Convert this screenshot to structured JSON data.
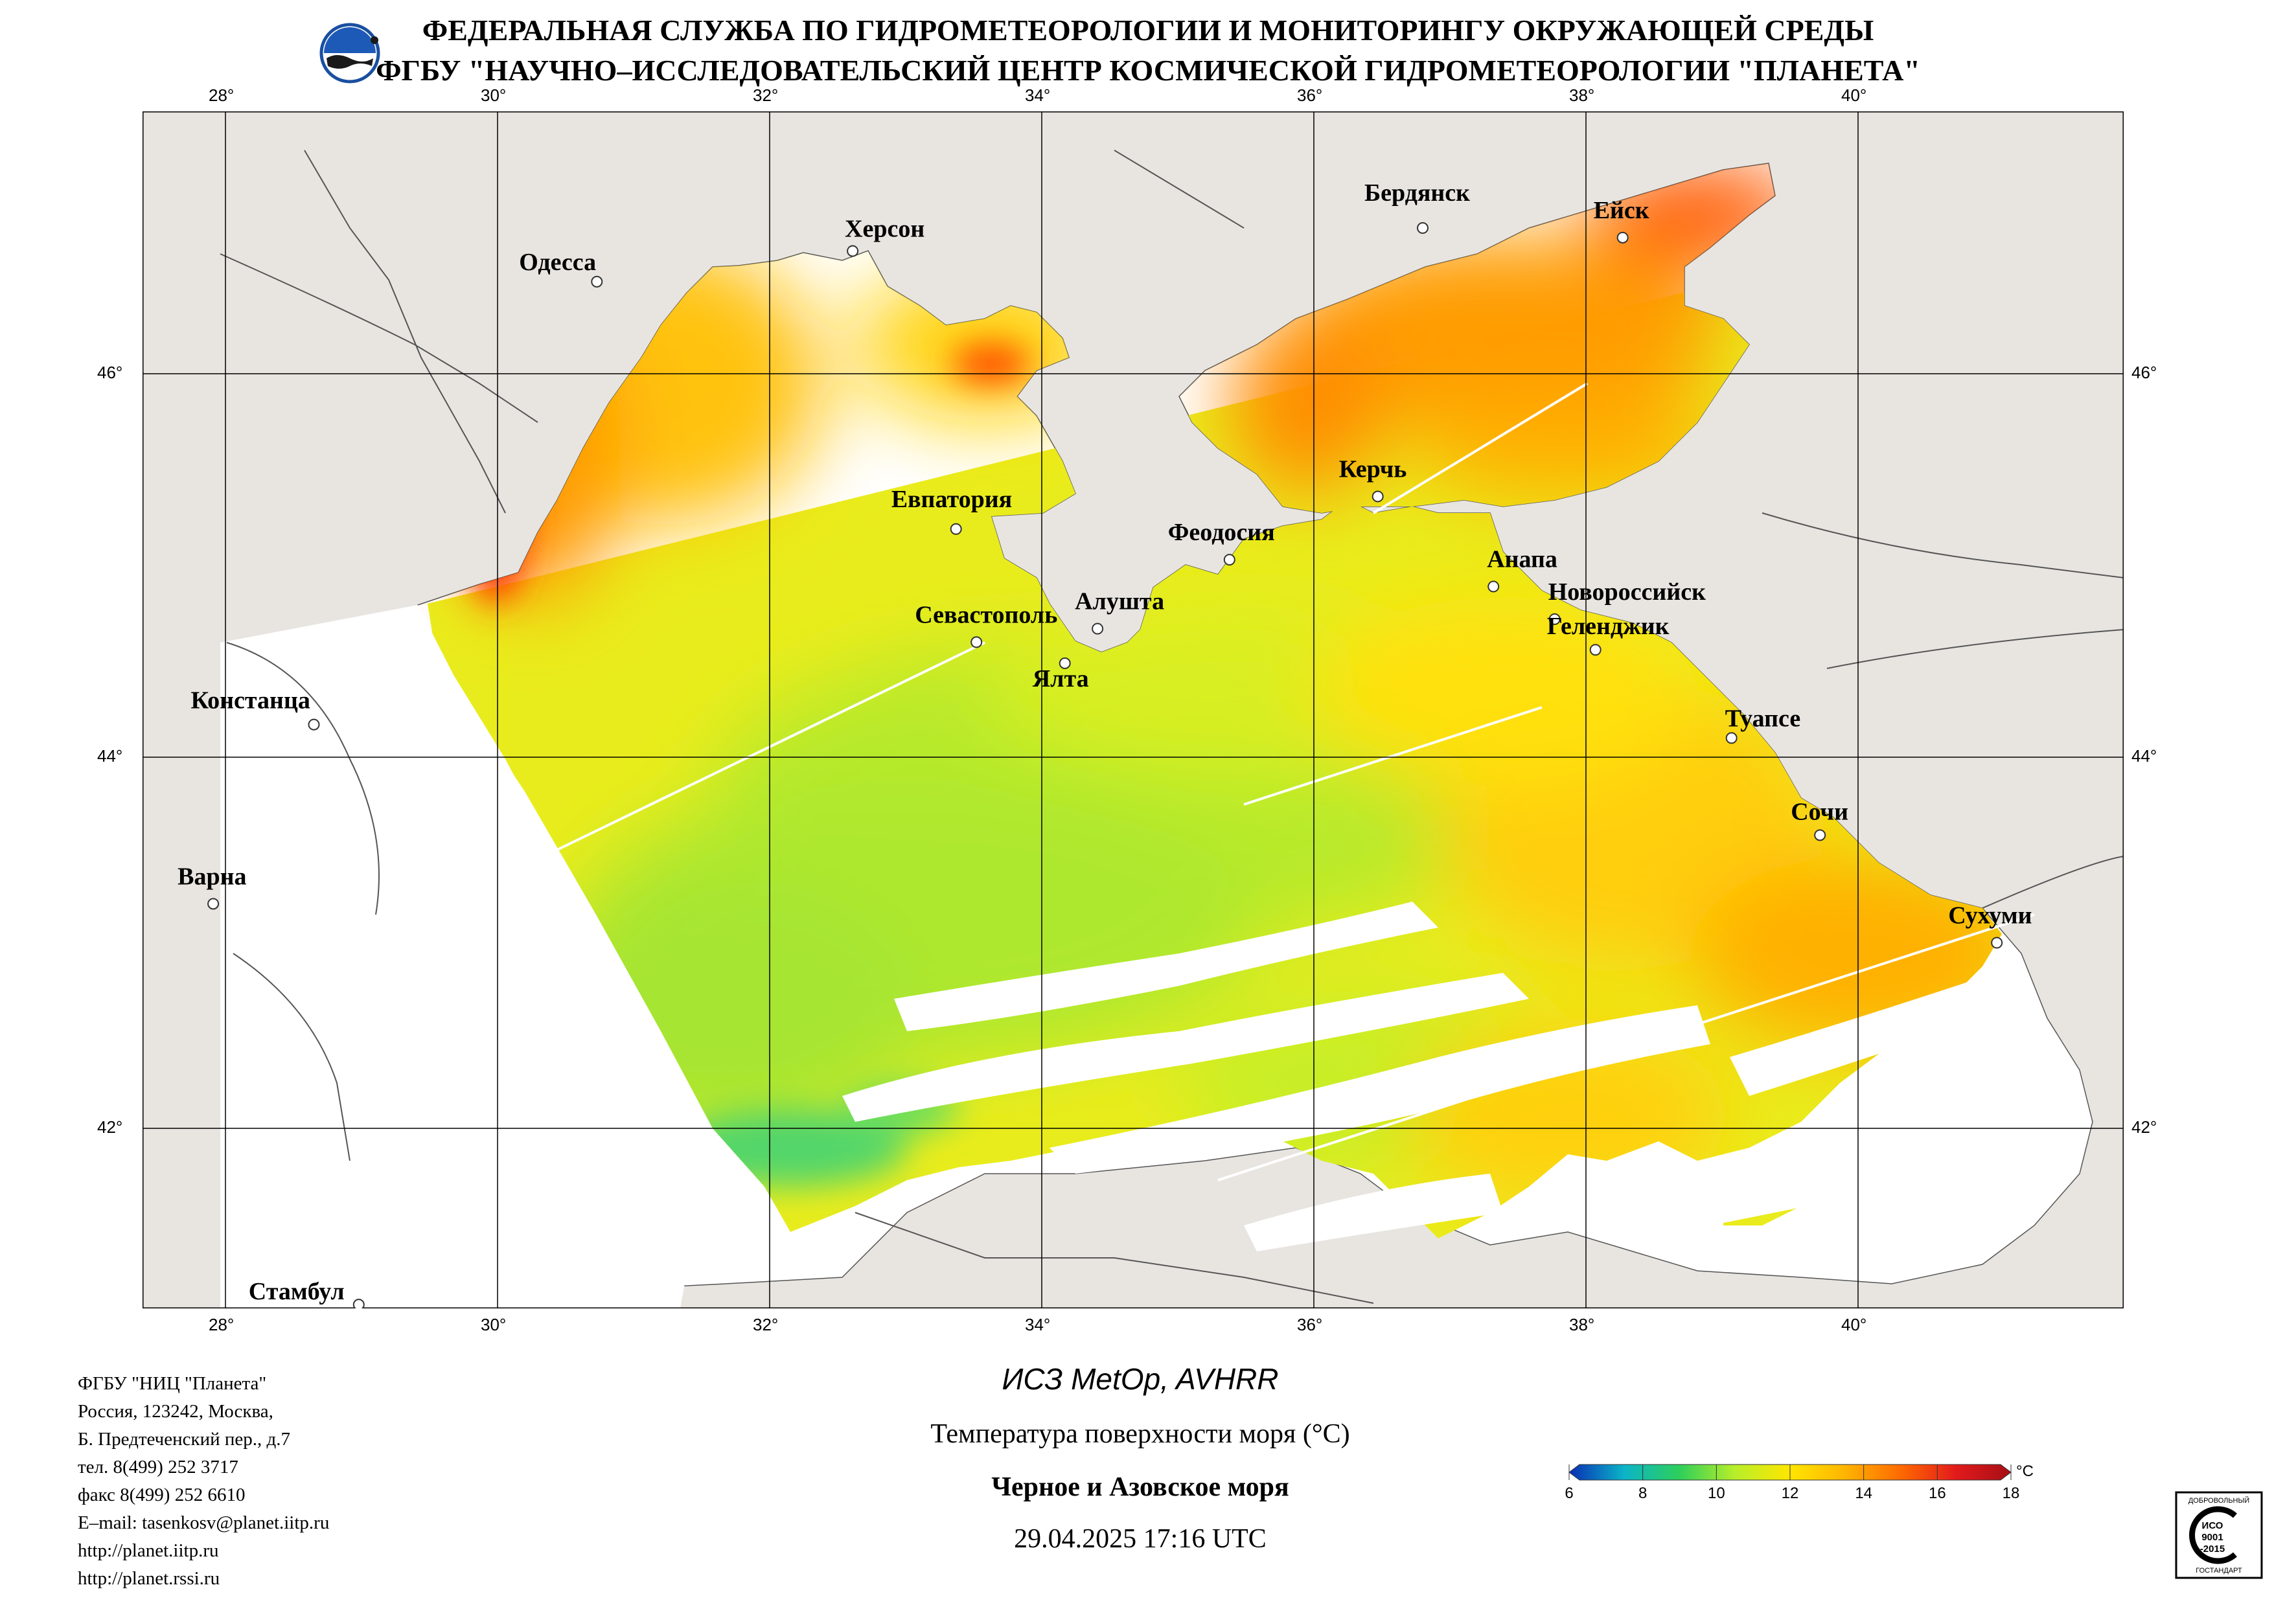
{
  "header": {
    "line1": "ФЕДЕРАЛЬНАЯ СЛУЖБА ПО ГИДРОМЕТЕОРОЛОГИИ И МОНИТОРИНГУ ОКРУЖАЮЩЕЙ СРЕДЫ",
    "line2": "ФГБУ \"НАУЧНО–ИССЛЕДОВАТЕЛЬСКИЙ ЦЕНТР КОСМИЧЕСКОЙ ГИДРОМЕТЕОРОЛОГИИ \"ПЛАНЕТА\"",
    "logo_icon": "planeta-logo-icon"
  },
  "map": {
    "lon_labels": [
      "28°",
      "30°",
      "32°",
      "34°",
      "36°",
      "38°",
      "40°"
    ],
    "lat_labels": [
      "46°",
      "44°",
      "42°"
    ],
    "colors": {
      "land": "#e8e5e1",
      "no_data": "#ffffff",
      "grid": "#000000"
    },
    "cities": [
      {
        "name": "Одесса",
        "lon": 30.73,
        "lat": 46.48
      },
      {
        "name": "Херсон",
        "lon": 32.61,
        "lat": 46.64
      },
      {
        "name": "Бердянск",
        "lon": 36.8,
        "lat": 46.76
      },
      {
        "name": "Ейск",
        "lon": 38.27,
        "lat": 46.71
      },
      {
        "name": "Евпатория",
        "lon": 33.37,
        "lat": 45.19
      },
      {
        "name": "Керчь",
        "lon": 36.47,
        "lat": 45.36
      },
      {
        "name": "Феодосия",
        "lon": 35.38,
        "lat": 45.03
      },
      {
        "name": "Анапа",
        "lon": 37.32,
        "lat": 44.89
      },
      {
        "name": "Новороссийск",
        "lon": 37.77,
        "lat": 44.72
      },
      {
        "name": "Геленджик",
        "lon": 38.07,
        "lat": 44.56
      },
      {
        "name": "Севастополь",
        "lon": 33.52,
        "lat": 44.6
      },
      {
        "name": "Алушта",
        "lon": 34.41,
        "lat": 44.67
      },
      {
        "name": "Ялта",
        "lon": 34.17,
        "lat": 44.49
      },
      {
        "name": "Констанца",
        "lon": 28.65,
        "lat": 44.17
      },
      {
        "name": "Туапсе",
        "lon": 39.07,
        "lat": 44.1
      },
      {
        "name": "Сочи",
        "lon": 39.72,
        "lat": 43.58
      },
      {
        "name": "Варна",
        "lon": 27.91,
        "lat": 43.21
      },
      {
        "name": "Сухуми",
        "lon": 41.02,
        "lat": 43.0
      },
      {
        "name": "Стамбул",
        "lon": 28.98,
        "lat": 41.05
      }
    ]
  },
  "org": {
    "lines": [
      "ФГБУ \"НИЦ \"Планета\"",
      "Россия, 123242, Москва,",
      "Б. Предтеченский пер., д.7",
      "тел. 8(499) 252 3717",
      "факс 8(499) 252 6610",
      "E–mail: tasenkosv@planet.iitp.ru",
      "http://planet.iitp.ru",
      "http://planet.rssi.ru"
    ]
  },
  "caption": {
    "satellite": "ИСЗ MetOp, AVHRR",
    "parameter": "Температура поверхности моря (°С)",
    "region": "Черное и Азовское моря",
    "datetime": "29.04.2025 17:16 UTC"
  },
  "scale": {
    "unit": "°C",
    "ticks": [
      "6",
      "8",
      "10",
      "12",
      "14",
      "16",
      "18"
    ],
    "range": [
      6,
      18
    ],
    "colors": [
      "#0a2db4",
      "#0bb4c8",
      "#2ecf5a",
      "#b8ee2a",
      "#ffe600",
      "#ffb400",
      "#ff6a00",
      "#e31a1c",
      "#a50f15"
    ]
  },
  "certificate": {
    "top_text": "ДОБРОВОЛЬНЫЙ",
    "iso1": "ИСО",
    "iso2": "9001",
    "iso3": "-2015",
    "bottom_text": "ГОСТАНДАРТ"
  }
}
